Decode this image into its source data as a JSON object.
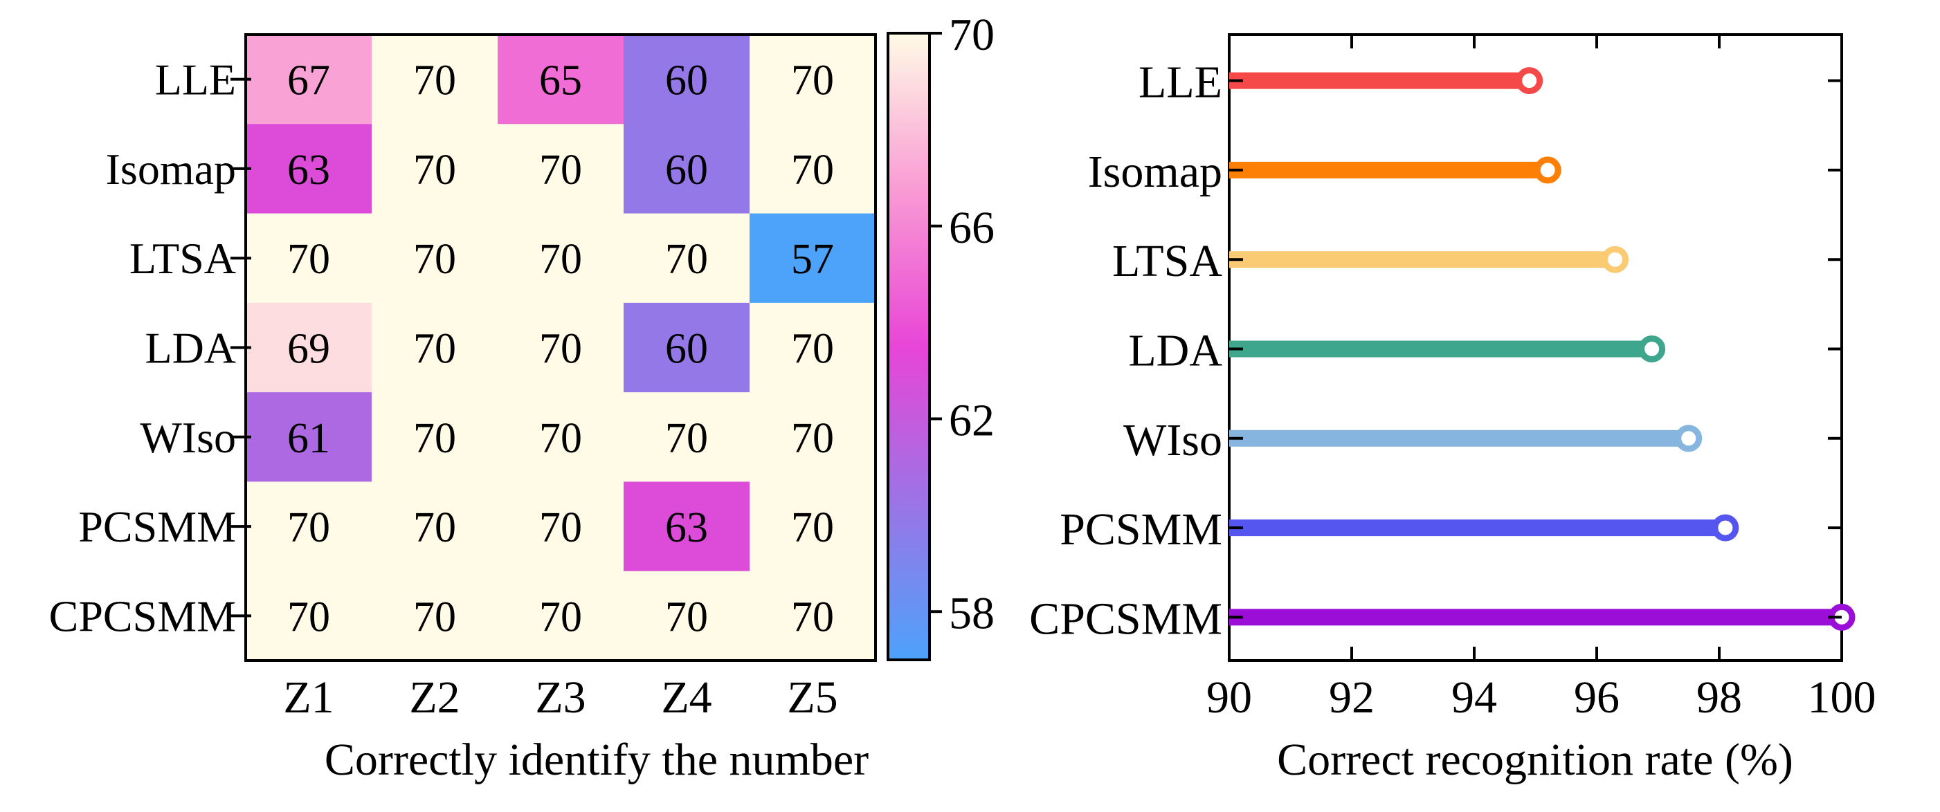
{
  "chart_data": [
    {
      "type": "heatmap",
      "title": "",
      "xlabel": "Correctly identify the number",
      "ylabel": "",
      "columns": [
        "Z1",
        "Z2",
        "Z3",
        "Z4",
        "Z5"
      ],
      "rows": [
        "LLE",
        "Isomap",
        "LTSA",
        "LDA",
        "WIso",
        "PCSMM",
        "CPCSMM"
      ],
      "values": [
        [
          67,
          70,
          65,
          60,
          70
        ],
        [
          63,
          70,
          70,
          60,
          70
        ],
        [
          70,
          70,
          70,
          70,
          57
        ],
        [
          69,
          70,
          70,
          60,
          70
        ],
        [
          61,
          70,
          70,
          70,
          70
        ],
        [
          70,
          70,
          70,
          63,
          70
        ],
        [
          70,
          70,
          70,
          70,
          70
        ]
      ],
      "colorbar": {
        "range": [
          57,
          70
        ],
        "ticks": [
          "58",
          "62",
          "66",
          "70"
        ],
        "tick_values": [
          58,
          62,
          66,
          70
        ],
        "colors": [
          "#4DA2FA",
          "#9B74E6",
          "#E845D6",
          "#F99BD4",
          "#FFFBE6"
        ]
      }
    },
    {
      "type": "lollipop",
      "title": "",
      "xlabel": "Correct recognition rate (%)",
      "ylabel": "",
      "categories": [
        "LLE",
        "Isomap",
        "LTSA",
        "LDA",
        "WIso",
        "PCSMM",
        "CPCSMM"
      ],
      "values": [
        94.9,
        95.2,
        96.3,
        96.9,
        97.5,
        98.1,
        100.0
      ],
      "colors": [
        "#F54848",
        "#FD7F06",
        "#FBCB74",
        "#3DA68C",
        "#86B6E0",
        "#5555EF",
        "#9A0ED8"
      ],
      "xlim": [
        90,
        100
      ],
      "xticks": [
        "90",
        "92",
        "94",
        "96",
        "98",
        "100"
      ],
      "xtick_values": [
        90,
        92,
        94,
        96,
        98,
        100
      ]
    }
  ]
}
